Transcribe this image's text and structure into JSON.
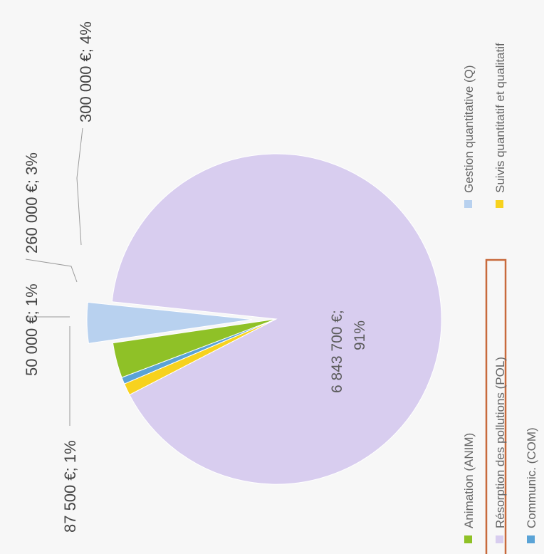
{
  "chart_data": {
    "type": "pie",
    "title": "",
    "slices": [
      {
        "name": "Résorption des pollutions (POL)",
        "value": 6843700,
        "label": "6 843 700 €;",
        "label2": "91%",
        "color": "#d8cdef"
      },
      {
        "name": "Suivis quantitatif et qualitatif",
        "value": 87500,
        "label": "87 500 €; 1%",
        "color": "#f7d21e"
      },
      {
        "name": "Communic. (COM)",
        "value": 50000,
        "label": "50 000 €; 1%",
        "color": "#5aa3d6"
      },
      {
        "name": "Animation (ANIM)",
        "value": 260000,
        "label": "260 000 €; 3%",
        "color": "#8fc127"
      },
      {
        "name": "Gestion quantitative (Q)",
        "value": 300000,
        "label": "300 000 €; 4%",
        "color": "#b8d1ef"
      }
    ],
    "legend": {
      "placement": "bottom",
      "items": [
        {
          "label": "Animation (ANIM)",
          "color": "#8fc127"
        },
        {
          "label": "Résorption des pollutions (POL)",
          "color": "#d8cdef",
          "highlighted": true
        },
        {
          "label": "Communic. (COM)",
          "color": "#5aa3d6"
        },
        {
          "label": "Gestion quantitative (Q)",
          "color": "#b8d1ef"
        },
        {
          "label": "Suivis quantitatif et qualitatif",
          "color": "#f7d21e"
        }
      ],
      "highlight_color": "#c86a3c"
    }
  }
}
